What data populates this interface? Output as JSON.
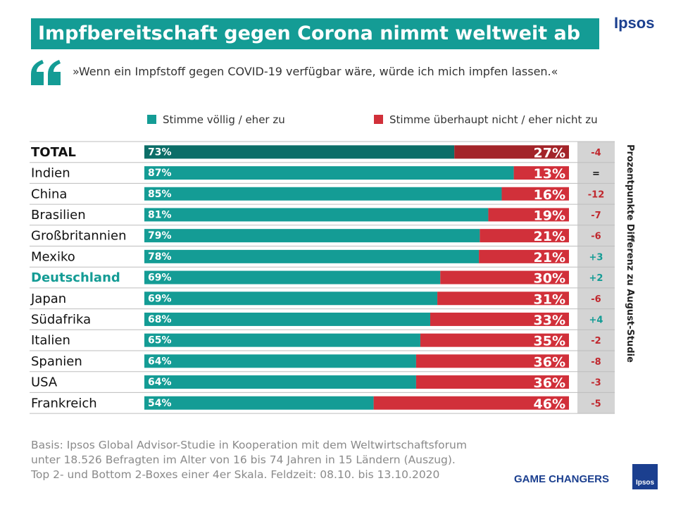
{
  "header": {
    "title": "Impfbereitschaft gegen Corona nimmt weltweit ab",
    "brand": "Ipsos",
    "quote": "»Wenn ein Impfstoff gegen COVID-19 verfügbar wäre, würde ich mich impfen lassen.«"
  },
  "legend": {
    "agree": "Stimme völlig / eher zu",
    "disagree": "Stimme überhaupt nicht / eher nicht zu"
  },
  "side_label": "Prozentpunkte Differenz zu August-Studie",
  "footnote": [
    "Basis: Ipsos Global Advisor-Studie in Kooperation mit dem Weltwirtschaftsforum",
    "unter 18.526 Befragten im Alter von 16 bis 74 Jahren in 15 Ländern (Auszug).",
    "Top 2- und Bottom 2-Boxes einer 4er Skala. Feldzeit: 08.10. bis 13.10.2020"
  ],
  "footer": {
    "tagline": "GAME CHANGERS",
    "logo": "Ipsos"
  },
  "colors": {
    "teal": "#149c95",
    "teal_dark": "#0c6e68",
    "red": "#d1303a",
    "red_dark": "#a32429",
    "diff_neg": "#c0272d",
    "diff_pos": "#149c95",
    "diff_bg": "#d4d4d4"
  },
  "chart_data": {
    "type": "bar",
    "orientation": "horizontal",
    "stacked": true,
    "categories": [
      "TOTAL",
      "Indien",
      "China",
      "Brasilien",
      "Großbritannien",
      "Mexiko",
      "Deutschland",
      "Japan",
      "Südafrika",
      "Italien",
      "Spanien",
      "USA",
      "Frankreich"
    ],
    "series": [
      {
        "name": "Stimme völlig / eher zu",
        "values": [
          73,
          87,
          85,
          81,
          79,
          78,
          69,
          69,
          68,
          65,
          64,
          64,
          54
        ]
      },
      {
        "name": "Stimme überhaupt nicht / eher nicht zu",
        "values": [
          27,
          13,
          16,
          19,
          21,
          21,
          30,
          31,
          33,
          35,
          36,
          36,
          46
        ]
      }
    ],
    "diff": [
      "-4",
      "=",
      "-12",
      "-7",
      "-6",
      "+3",
      "+2",
      "-6",
      "+4",
      "-2",
      "-8",
      "-3",
      "-5"
    ],
    "highlight": {
      "bold": [
        "TOTAL",
        "Deutschland"
      ],
      "teal_label": [
        "Deutschland"
      ],
      "dark_bar": [
        "TOTAL"
      ]
    },
    "value_suffix": "%",
    "xlim": [
      0,
      100
    ]
  }
}
